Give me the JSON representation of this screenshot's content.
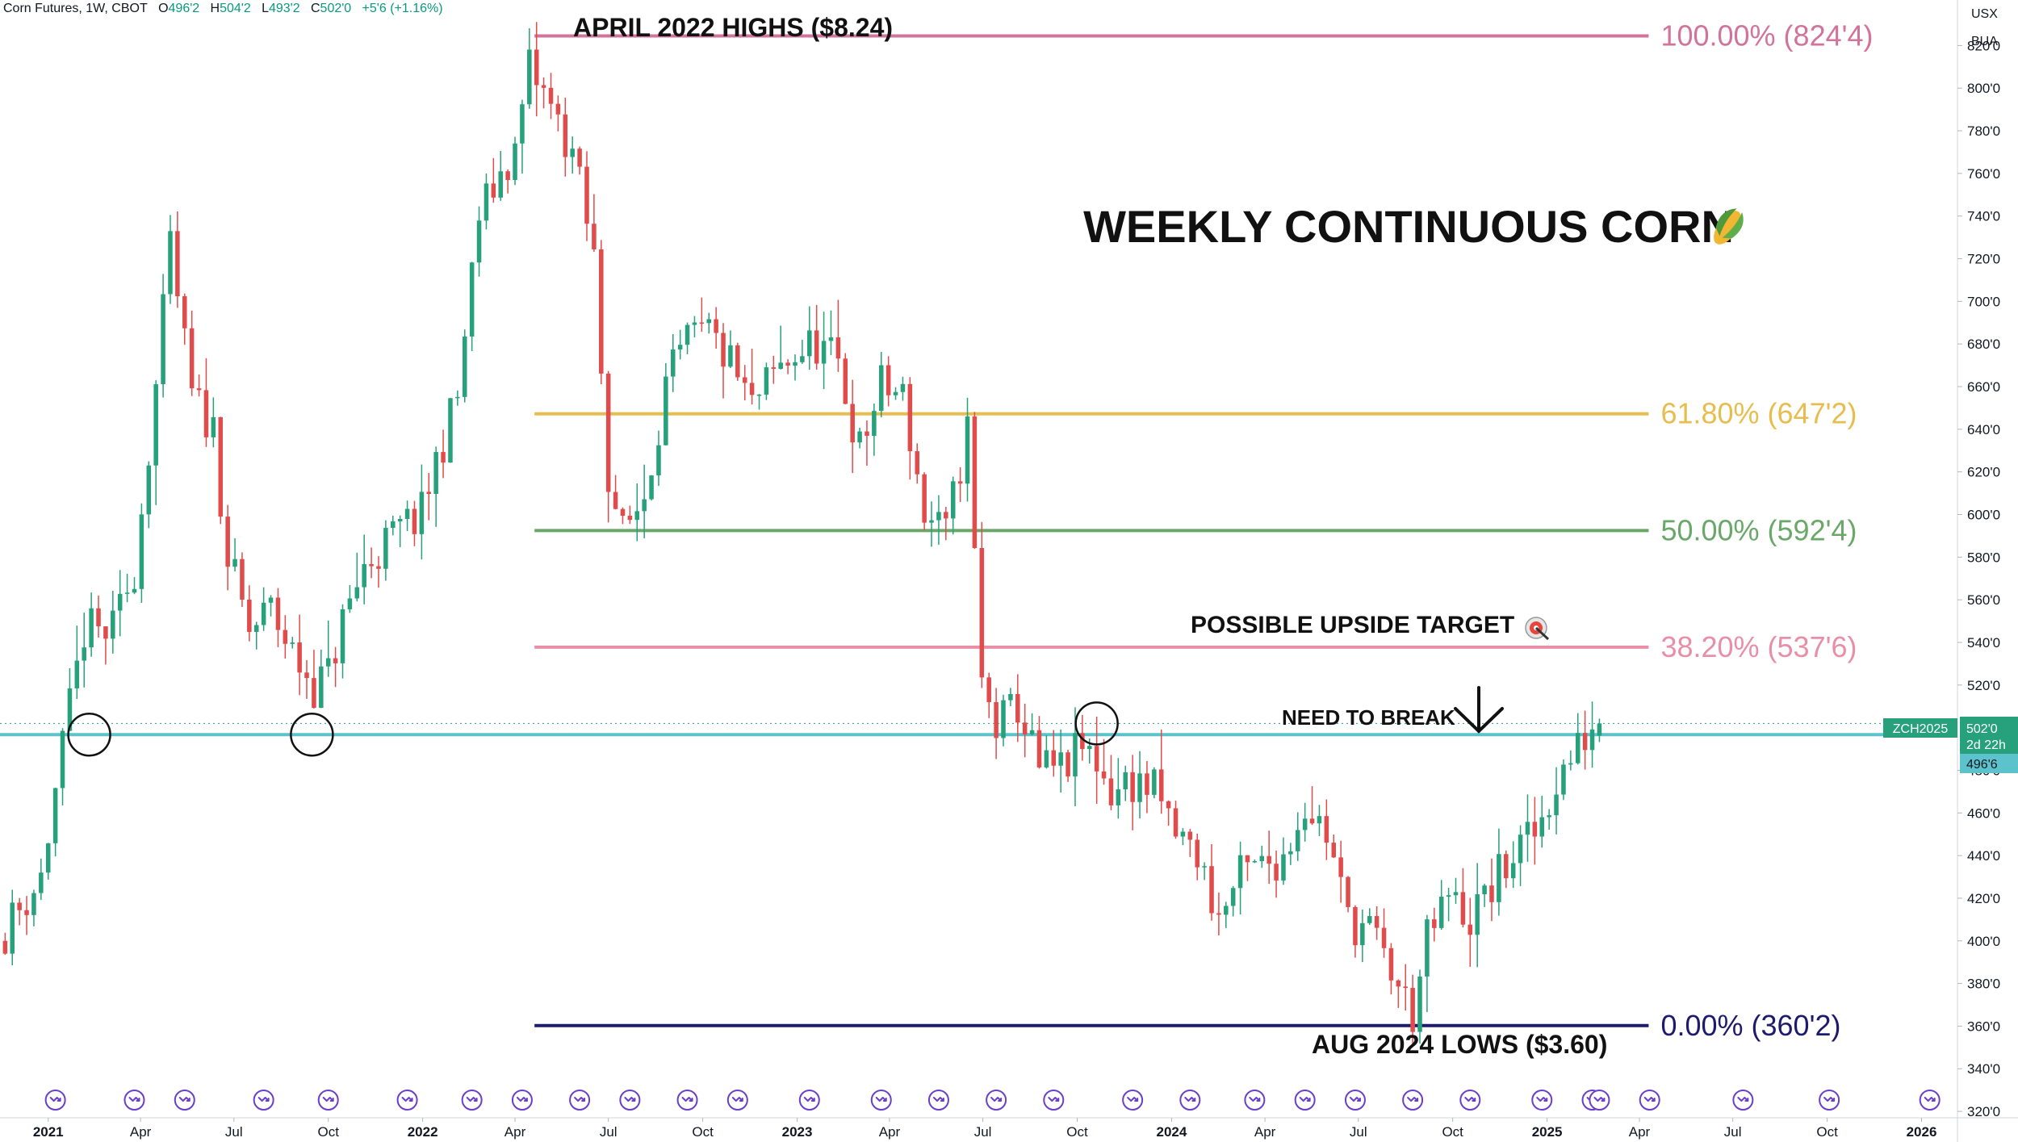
{
  "header": {
    "symbol": "Corn Futures, 1W, CBOT",
    "open_label": "O",
    "open": "496'2",
    "high_label": "H",
    "high": "504'2",
    "low_label": "L",
    "low": "493'2",
    "close_label": "C",
    "close": "502'0",
    "change": "+5'6 (+1.16%)"
  },
  "axis": {
    "currency": "USX",
    "unit": "BUA",
    "ticker_tag": "ZCH2025",
    "price_tag": "502'0",
    "countdown_tag": "2d 22h",
    "level_tag": "496'6"
  },
  "annotations": {
    "title": "WEEKLY CONTINUOUS CORN",
    "april_highs": "APRIL 2022 HIGHS ($8.24)",
    "aug_lows": "AUG 2024 LOWS ($3.60)",
    "upside_target": "POSSIBLE UPSIDE TARGET",
    "need_to_break": "NEED TO BREAK"
  },
  "colors": {
    "up": "#26a17b",
    "down": "#e04b4b",
    "support": "#5cc3cc",
    "fib_100": "#d1739a",
    "fib_618": "#e8bd4f",
    "fib_50": "#6aa86a",
    "fib_382": "#e88fa7",
    "fib_0": "#1e1a6e",
    "event_icon": "#6a3fc9"
  },
  "chart_data": {
    "type": "candlestick",
    "symbol": "Corn Futures, 1W, CBOT",
    "y_unit": "cents per bushel",
    "ylim": [
      317,
      830
    ],
    "x_range": [
      "2020-11-15",
      "2026-02-05"
    ],
    "x_ticks": [
      {
        "date": "2021-01-01",
        "label": "2021"
      },
      {
        "date": "2021-04-01",
        "label": "Apr"
      },
      {
        "date": "2021-07-01",
        "label": "Jul"
      },
      {
        "date": "2021-10-01",
        "label": "Oct"
      },
      {
        "date": "2022-01-01",
        "label": "2022"
      },
      {
        "date": "2022-04-01",
        "label": "Apr"
      },
      {
        "date": "2022-07-01",
        "label": "Jul"
      },
      {
        "date": "2022-10-01",
        "label": "Oct"
      },
      {
        "date": "2023-01-01",
        "label": "2023"
      },
      {
        "date": "2023-04-01",
        "label": "Apr"
      },
      {
        "date": "2023-07-01",
        "label": "Jul"
      },
      {
        "date": "2023-10-01",
        "label": "Oct"
      },
      {
        "date": "2024-01-01",
        "label": "2024"
      },
      {
        "date": "2024-04-01",
        "label": "Apr"
      },
      {
        "date": "2024-07-01",
        "label": "Jul"
      },
      {
        "date": "2024-10-01",
        "label": "Oct"
      },
      {
        "date": "2025-01-01",
        "label": "2025"
      },
      {
        "date": "2025-04-01",
        "label": "Apr"
      },
      {
        "date": "2025-07-01",
        "label": "Jul"
      },
      {
        "date": "2025-10-01",
        "label": "Oct"
      },
      {
        "date": "2026-01-01",
        "label": "2026"
      }
    ],
    "y_ticks": [
      {
        "value": 320,
        "label": "320'0"
      },
      {
        "value": 340,
        "label": "340'0"
      },
      {
        "value": 360,
        "label": "360'0"
      },
      {
        "value": 380,
        "label": "380'0"
      },
      {
        "value": 400,
        "label": "400'0"
      },
      {
        "value": 420,
        "label": "420'0"
      },
      {
        "value": 440,
        "label": "440'0"
      },
      {
        "value": 460,
        "label": "460'0"
      },
      {
        "value": 480,
        "label": "480'0"
      },
      {
        "value": 520,
        "label": "520'0"
      },
      {
        "value": 540,
        "label": "540'0"
      },
      {
        "value": 560,
        "label": "560'0"
      },
      {
        "value": 580,
        "label": "580'0"
      },
      {
        "value": 600,
        "label": "600'0"
      },
      {
        "value": 620,
        "label": "620'0"
      },
      {
        "value": 640,
        "label": "640'0"
      },
      {
        "value": 660,
        "label": "660'0"
      },
      {
        "value": 680,
        "label": "680'0"
      },
      {
        "value": 700,
        "label": "700'0"
      },
      {
        "value": 720,
        "label": "720'0"
      },
      {
        "value": 740,
        "label": "740'0"
      },
      {
        "value": 760,
        "label": "760'0"
      },
      {
        "value": 780,
        "label": "780'0"
      },
      {
        "value": 800,
        "label": "800'0"
      },
      {
        "value": 820,
        "label": "820'0"
      }
    ],
    "fib_levels": [
      {
        "key": "fib_100",
        "value": 824.5,
        "label": "100.00% (824'4)"
      },
      {
        "key": "fib_618",
        "value": 647.25,
        "label": "61.80% (647'2)"
      },
      {
        "key": "fib_50",
        "value": 592.5,
        "label": "50.00% (592'4)"
      },
      {
        "key": "fib_382",
        "value": 537.75,
        "label": "38.20% (537'6)"
      },
      {
        "key": "fib_0",
        "value": 360.25,
        "label": "0.00% (360'2)"
      }
    ],
    "fib_start": "2022-04-20",
    "fib_end": "2025-04-10",
    "support_level": 496.75,
    "last_close": 502,
    "circles": [
      {
        "date": "2021-02-10",
        "value": 496.75
      },
      {
        "date": "2021-09-15",
        "value": 496.75
      },
      {
        "date": "2023-10-20",
        "value": 502
      }
    ],
    "price_path": [
      [
        "2020-11-20",
        400
      ],
      [
        "2021-01-01",
        430
      ],
      [
        "2021-01-22",
        490
      ],
      [
        "2021-02-12",
        545
      ],
      [
        "2021-03-12",
        545
      ],
      [
        "2021-04-02",
        575
      ],
      [
        "2021-04-23",
        660
      ],
      [
        "2021-05-07",
        725
      ],
      [
        "2021-05-28",
        655
      ],
      [
        "2021-06-18",
        640
      ],
      [
        "2021-07-02",
        580
      ],
      [
        "2021-07-23",
        545
      ],
      [
        "2021-08-13",
        555
      ],
      [
        "2021-09-03",
        535
      ],
      [
        "2021-09-24",
        520
      ],
      [
        "2021-10-08",
        525
      ],
      [
        "2021-10-22",
        550
      ],
      [
        "2021-11-12",
        575
      ],
      [
        "2021-12-10",
        590
      ],
      [
        "2022-01-07",
        600
      ],
      [
        "2022-01-21",
        625
      ],
      [
        "2022-02-11",
        655
      ],
      [
        "2022-03-04",
        740
      ],
      [
        "2022-03-25",
        760
      ],
      [
        "2022-04-08",
        770
      ],
      [
        "2022-04-22",
        810
      ],
      [
        "2022-05-13",
        790
      ],
      [
        "2022-06-03",
        770
      ],
      [
        "2022-06-24",
        720
      ],
      [
        "2022-07-08",
        620
      ],
      [
        "2022-07-22",
        590
      ],
      [
        "2022-08-12",
        610
      ],
      [
        "2022-09-02",
        660
      ],
      [
        "2022-09-23",
        680
      ],
      [
        "2022-10-14",
        685
      ],
      [
        "2022-11-04",
        670
      ],
      [
        "2022-11-25",
        650
      ],
      [
        "2022-12-16",
        665
      ],
      [
        "2023-01-06",
        675
      ],
      [
        "2023-01-27",
        680
      ],
      [
        "2023-02-17",
        670
      ],
      [
        "2023-03-10",
        630
      ],
      [
        "2023-03-31",
        660
      ],
      [
        "2023-04-21",
        655
      ],
      [
        "2023-05-12",
        600
      ],
      [
        "2023-06-02",
        590
      ],
      [
        "2023-06-23",
        640
      ],
      [
        "2023-07-07",
        520
      ],
      [
        "2023-07-21",
        500
      ],
      [
        "2023-08-11",
        510
      ],
      [
        "2023-09-01",
        480
      ],
      [
        "2023-09-22",
        480
      ],
      [
        "2023-10-13",
        490
      ],
      [
        "2023-10-27",
        485
      ],
      [
        "2023-11-10",
        470
      ],
      [
        "2023-12-01",
        475
      ],
      [
        "2023-12-22",
        470
      ],
      [
        "2024-01-12",
        450
      ],
      [
        "2024-02-02",
        440
      ],
      [
        "2024-02-23",
        410
      ],
      [
        "2024-03-15",
        430
      ],
      [
        "2024-04-05",
        435
      ],
      [
        "2024-04-26",
        440
      ],
      [
        "2024-05-17",
        465
      ],
      [
        "2024-06-07",
        450
      ],
      [
        "2024-06-28",
        410
      ],
      [
        "2024-07-19",
        405
      ],
      [
        "2024-08-09",
        385
      ],
      [
        "2024-08-30",
        365
      ],
      [
        "2024-09-13",
        400
      ],
      [
        "2024-10-04",
        420
      ],
      [
        "2024-10-25",
        410
      ],
      [
        "2024-11-15",
        425
      ],
      [
        "2024-12-06",
        440
      ],
      [
        "2024-12-27",
        450
      ],
      [
        "2025-01-17",
        475
      ],
      [
        "2025-02-07",
        490
      ],
      [
        "2025-02-21",
        502
      ]
    ],
    "events": [
      "2021-01-08",
      "2021-03-26",
      "2021-05-14",
      "2021-07-30",
      "2021-10-01",
      "2021-12-17",
      "2022-02-18",
      "2022-04-08",
      "2022-06-03",
      "2022-07-22",
      "2022-09-16",
      "2022-11-04",
      "2023-01-13",
      "2023-03-24",
      "2023-05-19",
      "2023-07-14",
      "2023-09-08",
      "2023-11-24",
      "2024-01-19",
      "2024-03-22",
      "2024-05-10",
      "2024-06-28",
      "2024-08-23",
      "2024-10-18",
      "2024-12-27",
      "2025-02-14",
      "2025-02-21",
      "2025-04-11",
      "2025-07-11",
      "2025-10-03",
      "2026-01-09"
    ]
  }
}
